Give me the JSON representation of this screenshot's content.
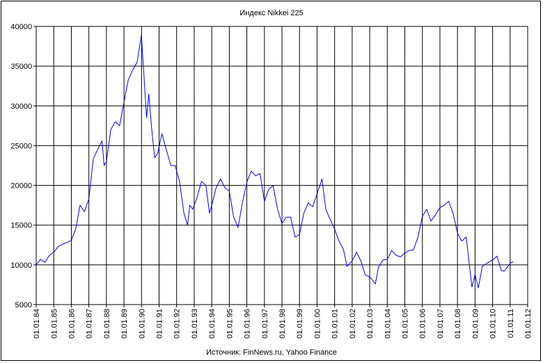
{
  "chart_data": {
    "type": "line",
    "title": "Индекс Nikkei 225",
    "source": "Источник: FinNews.ru, Yahoo Finance",
    "ylim": [
      5000,
      40000
    ],
    "yticks": [
      5000,
      10000,
      15000,
      20000,
      25000,
      30000,
      35000,
      40000
    ],
    "xlim": [
      "1984-01-01",
      "2012-01-01"
    ],
    "xticks": [
      "01.01.84",
      "01.01.85",
      "01.01.86",
      "01.01.87",
      "01.01.88",
      "01.01.89",
      "01.01.90",
      "01.01.91",
      "01.01.92",
      "01.01.93",
      "01.01.94",
      "01.01.95",
      "01.01.96",
      "01.01.97",
      "01.01.98",
      "01.01.99",
      "01.01.00",
      "01.01.01",
      "01.01.02",
      "01.01.03",
      "01.01.04",
      "01.01.05",
      "01.01.06",
      "01.01.07",
      "01.01.08",
      "01.01.09",
      "01.01.10",
      "01.01.11",
      "01.01.12"
    ],
    "grid": true,
    "line_color": "#0000ff",
    "series": [
      {
        "x": [
          "1984-01-01",
          "1984-04-01",
          "1984-07-01",
          "1984-10-01",
          "1985-01-01",
          "1985-04-01",
          "1985-07-01",
          "1985-10-01",
          "1986-01-01",
          "1986-04-01",
          "1986-07-01",
          "1986-10-01",
          "1987-01-01",
          "1987-04-01",
          "1987-07-01",
          "1987-10-01",
          "1987-11-15",
          "1988-01-01",
          "1988-04-01",
          "1988-07-01",
          "1988-10-01",
          "1989-01-01",
          "1989-04-01",
          "1989-07-01",
          "1989-10-01",
          "1989-12-29",
          "1990-03-01",
          "1990-04-15",
          "1990-06-01",
          "1990-08-01",
          "1990-10-01",
          "1990-12-01",
          "1991-03-01",
          "1991-06-01",
          "1991-09-01",
          "1991-12-01",
          "1992-03-01",
          "1992-06-01",
          "1992-08-15",
          "1992-10-01",
          "1992-12-01",
          "1993-03-01",
          "1993-06-01",
          "1993-09-01",
          "1993-11-15",
          "1994-01-01",
          "1994-04-01",
          "1994-07-01",
          "1994-10-01",
          "1995-01-01",
          "1995-04-01",
          "1995-07-01",
          "1995-10-01",
          "1996-01-01",
          "1996-04-01",
          "1996-07-01",
          "1996-10-01",
          "1997-01-01",
          "1997-04-01",
          "1997-07-01",
          "1997-10-01",
          "1998-01-01",
          "1998-04-01",
          "1998-07-01",
          "1998-10-01",
          "1999-01-01",
          "1999-04-01",
          "1999-07-01",
          "1999-10-01",
          "2000-01-01",
          "2000-04-12",
          "2000-07-01",
          "2000-10-01",
          "2001-01-01",
          "2001-04-01",
          "2001-07-01",
          "2001-09-15",
          "2002-01-01",
          "2002-04-01",
          "2002-07-01",
          "2002-10-01",
          "2003-01-01",
          "2003-04-28",
          "2003-07-01",
          "2003-10-01",
          "2004-01-01",
          "2004-04-01",
          "2004-07-01",
          "2004-10-01",
          "2005-01-01",
          "2005-04-01",
          "2005-07-01",
          "2005-10-01",
          "2006-01-01",
          "2006-04-01",
          "2006-07-01",
          "2006-10-01",
          "2007-01-01",
          "2007-04-01",
          "2007-07-01",
          "2007-10-01",
          "2008-01-01",
          "2008-04-01",
          "2008-07-01",
          "2008-10-28",
          "2009-01-01",
          "2009-03-10",
          "2009-06-01",
          "2009-09-01",
          "2010-01-01",
          "2010-04-01",
          "2010-07-01",
          "2010-09-01",
          "2011-01-01",
          "2011-03-01"
        ],
        "values": [
          10000,
          10700,
          10300,
          11200,
          11600,
          12300,
          12600,
          12800,
          13100,
          14500,
          17500,
          16700,
          18300,
          23300,
          24500,
          25600,
          22500,
          23000,
          27000,
          28000,
          27500,
          30500,
          33300,
          34500,
          35500,
          38900,
          33000,
          28500,
          31500,
          27000,
          23500,
          24000,
          26500,
          24500,
          22500,
          22500,
          20500,
          16500,
          15000,
          17500,
          17000,
          18500,
          20500,
          20000,
          16500,
          17500,
          19700,
          20800,
          19700,
          19300,
          16000,
          14700,
          17800,
          20400,
          21800,
          21200,
          21500,
          18000,
          19500,
          20000,
          17000,
          15200,
          16000,
          16000,
          13500,
          13800,
          16500,
          17800,
          17300,
          18900,
          20800,
          17000,
          15700,
          14500,
          13000,
          12000,
          9800,
          10500,
          11600,
          10500,
          8700,
          8500,
          7600,
          9700,
          10600,
          10700,
          11800,
          11200,
          11000,
          11500,
          11800,
          11900,
          13500,
          16100,
          17000,
          15500,
          16300,
          17200,
          17500,
          18000,
          16500,
          14000,
          13000,
          13500,
          7200,
          8800,
          7100,
          9800,
          10200,
          10600,
          11100,
          9300,
          9200,
          10200,
          10400
        ]
      }
    ]
  }
}
